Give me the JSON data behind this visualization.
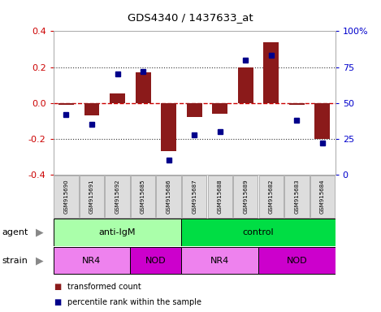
{
  "title": "GDS4340 / 1437633_at",
  "samples": [
    "GSM915690",
    "GSM915691",
    "GSM915692",
    "GSM915685",
    "GSM915686",
    "GSM915687",
    "GSM915688",
    "GSM915689",
    "GSM915682",
    "GSM915683",
    "GSM915684"
  ],
  "bar_values": [
    -0.01,
    -0.07,
    0.055,
    0.17,
    -0.27,
    -0.08,
    -0.06,
    0.2,
    0.34,
    -0.01,
    -0.2
  ],
  "percentile_values": [
    42,
    35,
    70,
    72,
    10,
    28,
    30,
    80,
    83,
    38,
    22
  ],
  "ylim": [
    -0.4,
    0.4
  ],
  "y2lim": [
    0,
    100
  ],
  "yticks": [
    -0.4,
    -0.2,
    0.0,
    0.2,
    0.4
  ],
  "y2ticks": [
    0,
    25,
    50,
    75,
    100
  ],
  "y2ticklabels": [
    "0",
    "25",
    "50",
    "75",
    "100%"
  ],
  "bar_color": "#8B1A1A",
  "dot_color": "#00008B",
  "zero_line_color": "#CC0000",
  "dotted_line_color": "#333333",
  "agent_groups": [
    {
      "label": "anti-IgM",
      "start": 0,
      "end": 5,
      "color": "#AAFFAA"
    },
    {
      "label": "control",
      "start": 5,
      "end": 11,
      "color": "#00DD44"
    }
  ],
  "strain_groups": [
    {
      "label": "NR4",
      "start": 0,
      "end": 3,
      "color": "#EE82EE"
    },
    {
      "label": "NOD",
      "start": 3,
      "end": 5,
      "color": "#CC00CC"
    },
    {
      "label": "NR4",
      "start": 5,
      "end": 8,
      "color": "#EE82EE"
    },
    {
      "label": "NOD",
      "start": 8,
      "end": 11,
      "color": "#CC00CC"
    }
  ],
  "legend_items": [
    {
      "label": "transformed count",
      "color": "#8B1A1A"
    },
    {
      "label": "percentile rank within the sample",
      "color": "#00008B"
    }
  ],
  "plot_bg": "#FFFFFF",
  "tick_label_color_left": "#CC0000",
  "tick_label_color_right": "#0000CC",
  "sample_box_color": "#DDDDDD",
  "sample_box_edge": "#999999"
}
